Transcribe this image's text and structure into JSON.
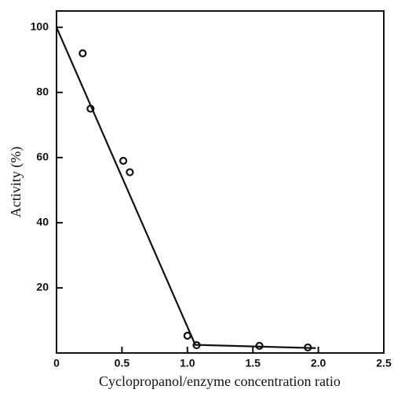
{
  "chart_data": {
    "type": "scatter",
    "x_label": "Cyclopropanol/enzyme concentration ratio",
    "y_label": "Activity (%)",
    "xlim": [
      0,
      2.5
    ],
    "xticks": [
      0,
      0.5,
      {
        "value": 1,
        "label": "1.0"
      },
      1.5,
      {
        "value": 2,
        "label": "2.0"
      },
      2.5
    ],
    "ylim": [
      0,
      105
    ],
    "yticks": [
      20,
      40,
      60,
      80,
      100
    ],
    "grid": false,
    "series": [
      {
        "mode": "markers",
        "color": "#111111",
        "x": [
          0.2,
          0.26,
          0.51,
          0.56,
          1.0,
          1.07,
          1.55,
          1.92
        ],
        "values": [
          92,
          75,
          59,
          55.5,
          5.3,
          2.4,
          2.2,
          1.7
        ]
      },
      {
        "mode": "line",
        "color": "#111111",
        "x": [
          0,
          1.06,
          1.98
        ],
        "values": [
          100,
          2.5,
          1.5
        ]
      }
    ]
  }
}
